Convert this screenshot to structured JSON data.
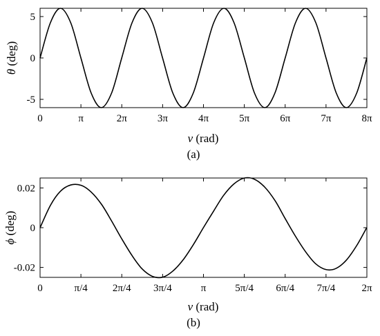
{
  "chart_data": [
    {
      "type": "line",
      "panel_label": "(a)",
      "xlabel_symbol": "ν",
      "xlabel_unit": " (rad)",
      "ylabel_symbol": "θ",
      "ylabel_unit": " (deg)",
      "xlim": [
        0,
        25.1327
      ],
      "ylim": [
        -6,
        6
      ],
      "x_ticks": [
        {
          "value": 0,
          "label": "0"
        },
        {
          "value": 3.14159,
          "label": "π"
        },
        {
          "value": 6.28319,
          "label": "2π"
        },
        {
          "value": 9.42478,
          "label": "3π"
        },
        {
          "value": 12.56637,
          "label": "4π"
        },
        {
          "value": 15.70796,
          "label": "5π"
        },
        {
          "value": 18.84956,
          "label": "6π"
        },
        {
          "value": 21.99115,
          "label": "7π"
        },
        {
          "value": 25.13274,
          "label": "8π"
        }
      ],
      "y_ticks": [
        {
          "value": 5,
          "label": "5"
        },
        {
          "value": 0,
          "label": "0"
        },
        {
          "value": -5,
          "label": "-5"
        }
      ],
      "series": [
        {
          "x": [
            0.0,
            0.79,
            1.57,
            2.36,
            3.14,
            3.93,
            4.71,
            5.5,
            6.28,
            7.07,
            7.85,
            8.64,
            9.42,
            10.21,
            11.0,
            11.78,
            12.57,
            13.35,
            14.14,
            14.92,
            15.71,
            16.49,
            17.28,
            18.06,
            18.85,
            19.64,
            20.42,
            21.21,
            21.99,
            22.78,
            23.56,
            24.35,
            25.13
          ],
          "y": [
            0.0,
            4.24,
            6.0,
            4.24,
            0.0,
            -4.24,
            -6.0,
            -4.24,
            0.0,
            4.24,
            6.0,
            4.24,
            0.0,
            -4.24,
            -6.0,
            -4.24,
            0.0,
            4.24,
            6.0,
            4.24,
            0.0,
            -4.24,
            -6.0,
            -4.24,
            0.0,
            4.24,
            6.0,
            4.24,
            0.0,
            -4.24,
            -6.0,
            -4.24,
            0.0
          ]
        }
      ]
    },
    {
      "type": "line",
      "panel_label": "(b)",
      "xlabel_symbol": "ν",
      "xlabel_unit": " (rad)",
      "ylabel_symbol": "ϕ",
      "ylabel_unit": " (deg)",
      "xlim": [
        0,
        6.28319
      ],
      "ylim": [
        -0.025,
        0.025
      ],
      "x_ticks": [
        {
          "value": 0,
          "label": "0"
        },
        {
          "value": 0.7854,
          "label": "π/4"
        },
        {
          "value": 1.5708,
          "label": "2π/4"
        },
        {
          "value": 2.3562,
          "label": "3π/4"
        },
        {
          "value": 3.1416,
          "label": "π"
        },
        {
          "value": 3.927,
          "label": "5π/4"
        },
        {
          "value": 4.7124,
          "label": "6π/4"
        },
        {
          "value": 5.4978,
          "label": "7π/4"
        },
        {
          "value": 6.2832,
          "label": "2π"
        }
      ],
      "y_ticks": [
        {
          "value": 0.02,
          "label": "0.02"
        },
        {
          "value": 0,
          "label": "0"
        },
        {
          "value": -0.02,
          "label": "-0.02"
        }
      ],
      "series": [
        {
          "x": [
            0.0,
            0.2,
            0.39,
            0.59,
            0.79,
            0.98,
            1.18,
            1.37,
            1.57,
            1.77,
            1.96,
            2.16,
            2.36,
            2.55,
            2.75,
            2.95,
            3.14,
            3.34,
            3.53,
            3.73,
            3.93,
            4.12,
            4.32,
            4.52,
            4.71,
            4.91,
            5.11,
            5.3,
            5.5,
            5.69,
            5.89,
            6.09,
            6.28
          ],
          "y": [
            0.0,
            0.0113,
            0.0183,
            0.0215,
            0.0213,
            0.018,
            0.0118,
            0.0036,
            -0.0056,
            -0.0141,
            -0.0207,
            -0.0245,
            -0.0249,
            -0.0219,
            -0.0162,
            -0.0084,
            0.0,
            0.0085,
            0.0163,
            0.0221,
            0.025,
            0.0244,
            0.0204,
            0.0135,
            0.0047,
            -0.0043,
            -0.0123,
            -0.0182,
            -0.0211,
            -0.0205,
            -0.0163,
            -0.0089,
            0.0
          ]
        }
      ]
    }
  ]
}
